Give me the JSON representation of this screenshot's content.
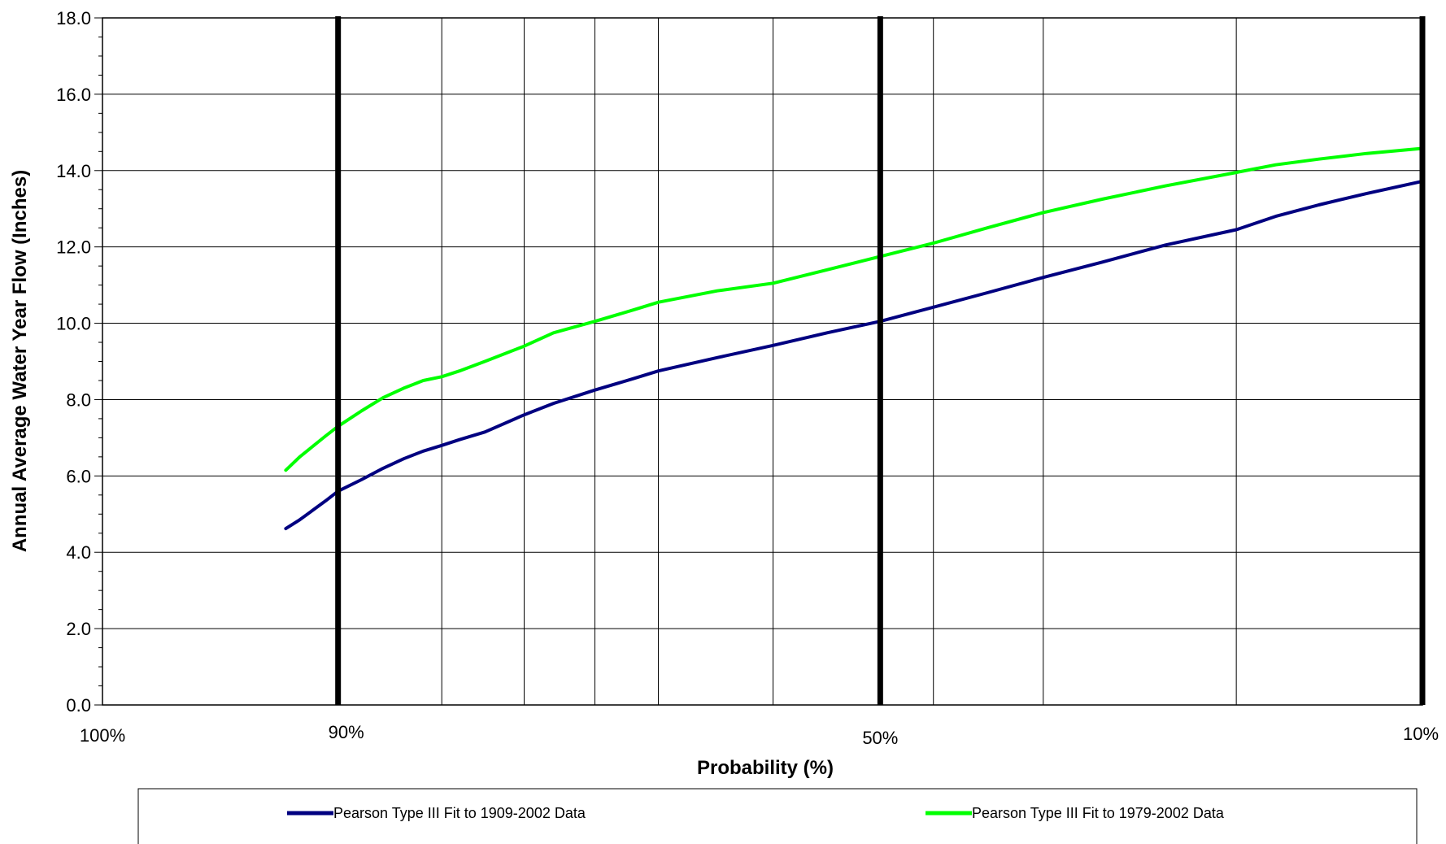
{
  "chart_data": {
    "type": "line",
    "xlabel": "Probability (%)",
    "ylabel": "Annual Average Water Year Flow  (Inches)",
    "x_scale": "normal-probability",
    "x_reversed": true,
    "xlim": [
      100,
      10
    ],
    "ylim": [
      0,
      18
    ],
    "y_ticks": [
      0,
      2,
      4,
      6,
      8,
      10,
      12,
      14,
      16,
      18
    ],
    "y_tick_labels": [
      "0.0",
      "2.0",
      "4.0",
      "6.0",
      "8.0",
      "10.0",
      "12.0",
      "14.0",
      "16.0",
      "18.0"
    ],
    "x_tick_labels": [
      {
        "value": 100,
        "label": "100%"
      },
      {
        "value": 90,
        "label": "90%"
      },
      {
        "value": 50,
        "label": "50%"
      },
      {
        "value": 10,
        "label": "10%"
      }
    ],
    "gridlines_x": [
      100,
      85,
      80,
      75,
      70,
      60,
      50,
      45,
      35,
      20,
      10
    ],
    "reference_lines_x": [
      90,
      50,
      10
    ],
    "grid": true,
    "legend_position": "bottom",
    "series": [
      {
        "name": "Pearson Type III Fit to 1909-2002 Data",
        "color": "#000080",
        "x": [
          92,
          91.5,
          90.5,
          90,
          89,
          88,
          87,
          86,
          85,
          84,
          82.5,
          80,
          78,
          75,
          72,
          70,
          65,
          60,
          55,
          50,
          45,
          40,
          35,
          30,
          25,
          20,
          17.5,
          15,
          12.5,
          10
        ],
        "y": [
          4.62,
          4.85,
          5.35,
          5.6,
          5.9,
          6.2,
          6.45,
          6.65,
          6.8,
          6.95,
          7.15,
          7.6,
          7.9,
          8.25,
          8.55,
          8.75,
          9.1,
          9.42,
          9.75,
          10.05,
          10.42,
          10.8,
          11.2,
          11.6,
          12.05,
          12.45,
          12.8,
          13.1,
          13.4,
          13.72
        ]
      },
      {
        "name": "Pearson Type III Fit to 1979-2002 Data",
        "color": "#00ff00",
        "x": [
          92,
          91.5,
          90.5,
          90,
          89,
          88,
          87,
          86,
          85,
          84,
          82.5,
          80,
          78,
          75,
          72,
          70,
          65,
          60,
          55,
          50,
          45,
          40,
          35,
          30,
          25,
          20,
          17.5,
          15,
          12.5,
          10
        ],
        "y": [
          6.15,
          6.5,
          7.05,
          7.3,
          7.7,
          8.05,
          8.3,
          8.5,
          8.6,
          8.75,
          9.0,
          9.4,
          9.75,
          10.05,
          10.35,
          10.55,
          10.85,
          11.05,
          11.4,
          11.75,
          12.1,
          12.5,
          12.9,
          13.25,
          13.6,
          13.95,
          14.15,
          14.3,
          14.45,
          14.58
        ]
      }
    ]
  }
}
